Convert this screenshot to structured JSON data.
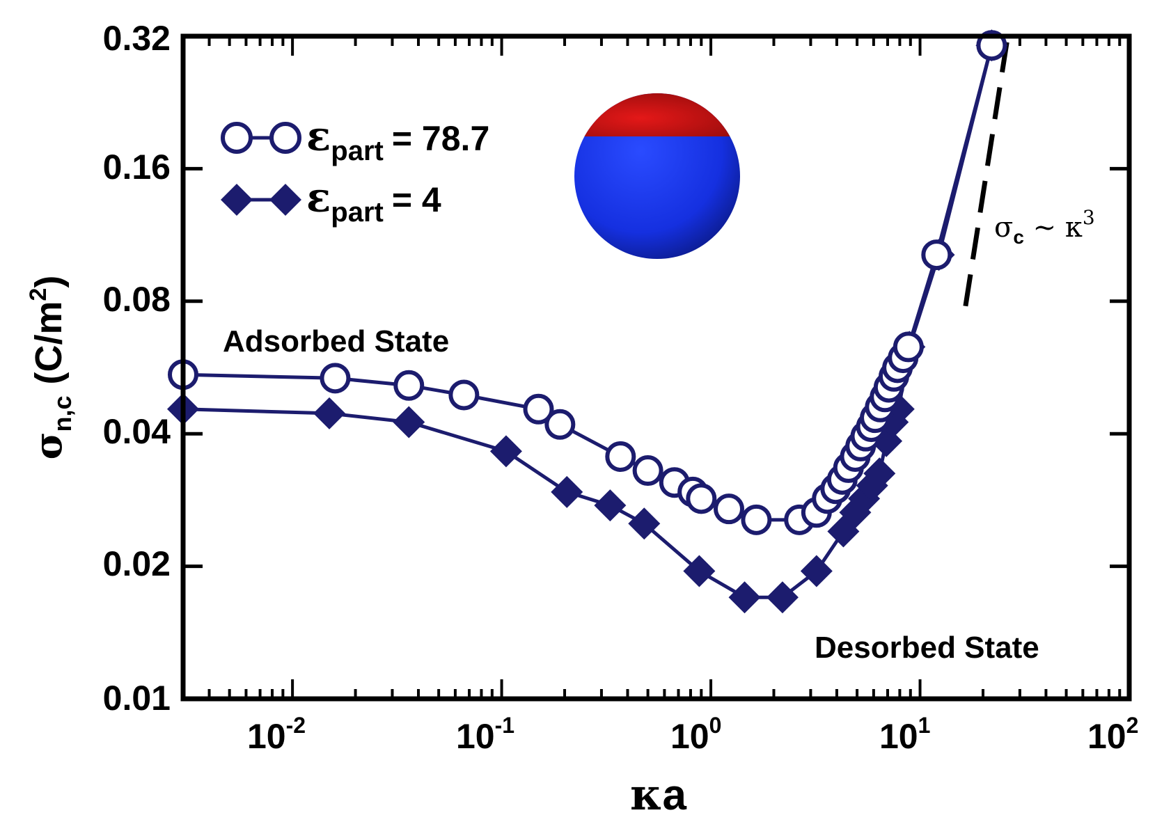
{
  "chart_data": {
    "type": "line",
    "xscale": "log",
    "yscale": "log",
    "xlim": [
      0.003,
      100
    ],
    "ylim": [
      0.01,
      0.32
    ],
    "xticks": [
      {
        "value": 0.01,
        "base": "10",
        "exp": "-2"
      },
      {
        "value": 0.1,
        "base": "10",
        "exp": "-1"
      },
      {
        "value": 1,
        "base": "10",
        "exp": "0"
      },
      {
        "value": 10,
        "base": "10",
        "exp": "1"
      },
      {
        "value": 100,
        "base": "10",
        "exp": "2"
      }
    ],
    "yticks": [
      {
        "value": 0.01,
        "label": "0.01"
      },
      {
        "value": 0.02,
        "label": "0.02"
      },
      {
        "value": 0.04,
        "label": "0.04"
      },
      {
        "value": 0.08,
        "label": "0.08"
      },
      {
        "value": 0.16,
        "label": "0.16"
      },
      {
        "value": 0.32,
        "label": "0.32"
      }
    ],
    "xlabel": {
      "greek": "κ",
      "text": "a"
    },
    "ylabel": {
      "greek": "σ",
      "sub": "n,c",
      "text": "(C/m",
      "sup": "2",
      "close": ")"
    },
    "series": [
      {
        "name": "εpart = 78.7",
        "legend": {
          "greek": "ε",
          "sub": "part",
          "value": "= 78.7"
        },
        "marker": "open-circle",
        "color": "#1c1c6e",
        "x": [
          0.003,
          0.016,
          0.036,
          0.066,
          0.15,
          0.19,
          0.37,
          0.5,
          0.67,
          0.82,
          0.9,
          1.22,
          1.65,
          2.65,
          3.2,
          3.6,
          3.95,
          4.25,
          4.55,
          4.9,
          5.2,
          5.5,
          5.85,
          6.1,
          6.45,
          6.8,
          7.1,
          7.5,
          7.8,
          8.3,
          8.8,
          12.0,
          22.0
        ],
        "y": [
          0.0545,
          0.0535,
          0.0515,
          0.049,
          0.0455,
          0.042,
          0.0355,
          0.033,
          0.031,
          0.0295,
          0.0285,
          0.027,
          0.0255,
          0.0255,
          0.0265,
          0.0285,
          0.03,
          0.0315,
          0.0335,
          0.0355,
          0.0375,
          0.0395,
          0.0415,
          0.0435,
          0.046,
          0.0485,
          0.051,
          0.054,
          0.0565,
          0.0595,
          0.063,
          0.102,
          0.305
        ]
      },
      {
        "name": "εpart = 4",
        "legend": {
          "greek": "ε",
          "sub": "part",
          "value": "= 4"
        },
        "marker": "filled-diamond",
        "color": "#1c1c6e",
        "x": [
          0.003,
          0.015,
          0.036,
          0.105,
          0.205,
          0.33,
          0.48,
          0.88,
          1.45,
          2.2,
          3.2,
          4.3,
          4.9,
          5.4,
          5.9,
          6.4,
          6.9,
          7.4,
          7.9,
          8.9,
          12.3,
          22.0
        ],
        "y": [
          0.0455,
          0.0445,
          0.0425,
          0.0365,
          0.0295,
          0.0275,
          0.025,
          0.0195,
          0.017,
          0.017,
          0.0195,
          0.024,
          0.0265,
          0.0285,
          0.0305,
          0.0325,
          0.0385,
          0.0425,
          0.0455,
          0.063,
          0.102,
          0.305
        ]
      }
    ],
    "reference_line": {
      "label": {
        "greek": "σ",
        "sub": "c",
        "mid": " ~ ",
        "greek2": "κ",
        "sup": "3"
      },
      "style": "dashed",
      "x": [
        16.5,
        26.0
      ],
      "y": [
        0.078,
        0.31
      ]
    },
    "annotations": [
      {
        "id": "adsorbed",
        "text": "Adsorbed State"
      },
      {
        "id": "desorbed",
        "text": "Desorbed State"
      }
    ],
    "inset": {
      "type": "sphere",
      "top_color": "#d01010",
      "bottom_color": "#1530e0"
    }
  }
}
